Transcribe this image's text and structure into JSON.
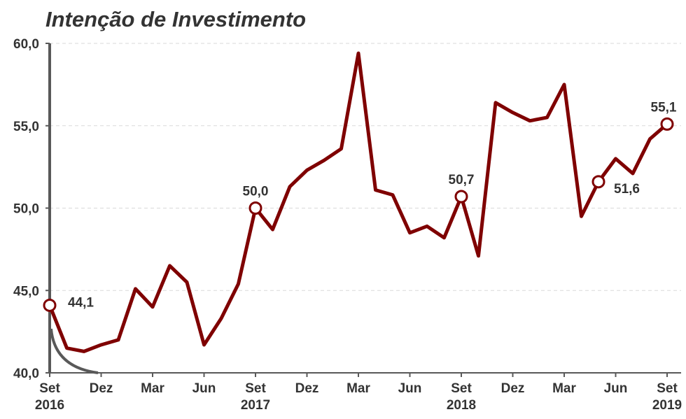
{
  "chart_data": {
    "type": "line",
    "title": "Intenção de Investimento",
    "categories": [
      "Set 2016",
      null,
      null,
      "Dez",
      null,
      null,
      "Mar",
      null,
      null,
      "Jun",
      null,
      null,
      "Set 2017",
      null,
      null,
      "Dez",
      null,
      null,
      "Mar",
      null,
      null,
      "Jun",
      null,
      null,
      "Set 2018",
      null,
      null,
      "Dez",
      null,
      null,
      "Mar",
      null,
      null,
      "Jun",
      null,
      null,
      "Set 2019"
    ],
    "series": [
      {
        "name": "Intenção de Investimento",
        "color": "#7f0000",
        "values": [
          44.1,
          41.5,
          41.3,
          41.7,
          42.0,
          45.1,
          44.0,
          46.5,
          45.5,
          41.7,
          43.3,
          45.4,
          50.0,
          48.7,
          51.3,
          52.3,
          52.9,
          53.6,
          59.4,
          51.1,
          50.8,
          48.5,
          48.9,
          48.2,
          50.7,
          47.1,
          56.4,
          55.8,
          55.3,
          55.5,
          57.5,
          49.5,
          51.6,
          53.0,
          52.1,
          54.2,
          55.1
        ],
        "value_labels": [
          "44,1",
          null,
          null,
          null,
          null,
          null,
          null,
          null,
          null,
          null,
          null,
          null,
          "50,0",
          null,
          null,
          null,
          null,
          null,
          null,
          null,
          null,
          null,
          null,
          null,
          "50,7",
          null,
          null,
          null,
          null,
          null,
          null,
          null,
          "51,6",
          null,
          null,
          null,
          "55,1"
        ]
      }
    ],
    "ylim": [
      40,
      60
    ],
    "yticks": [
      {
        "value": 40,
        "label": "40,0"
      },
      {
        "value": 45,
        "label": "45,0"
      },
      {
        "value": 50,
        "label": "50,0"
      },
      {
        "value": 55,
        "label": "55,0"
      },
      {
        "value": 60,
        "label": "60,0"
      }
    ],
    "grid": true
  }
}
